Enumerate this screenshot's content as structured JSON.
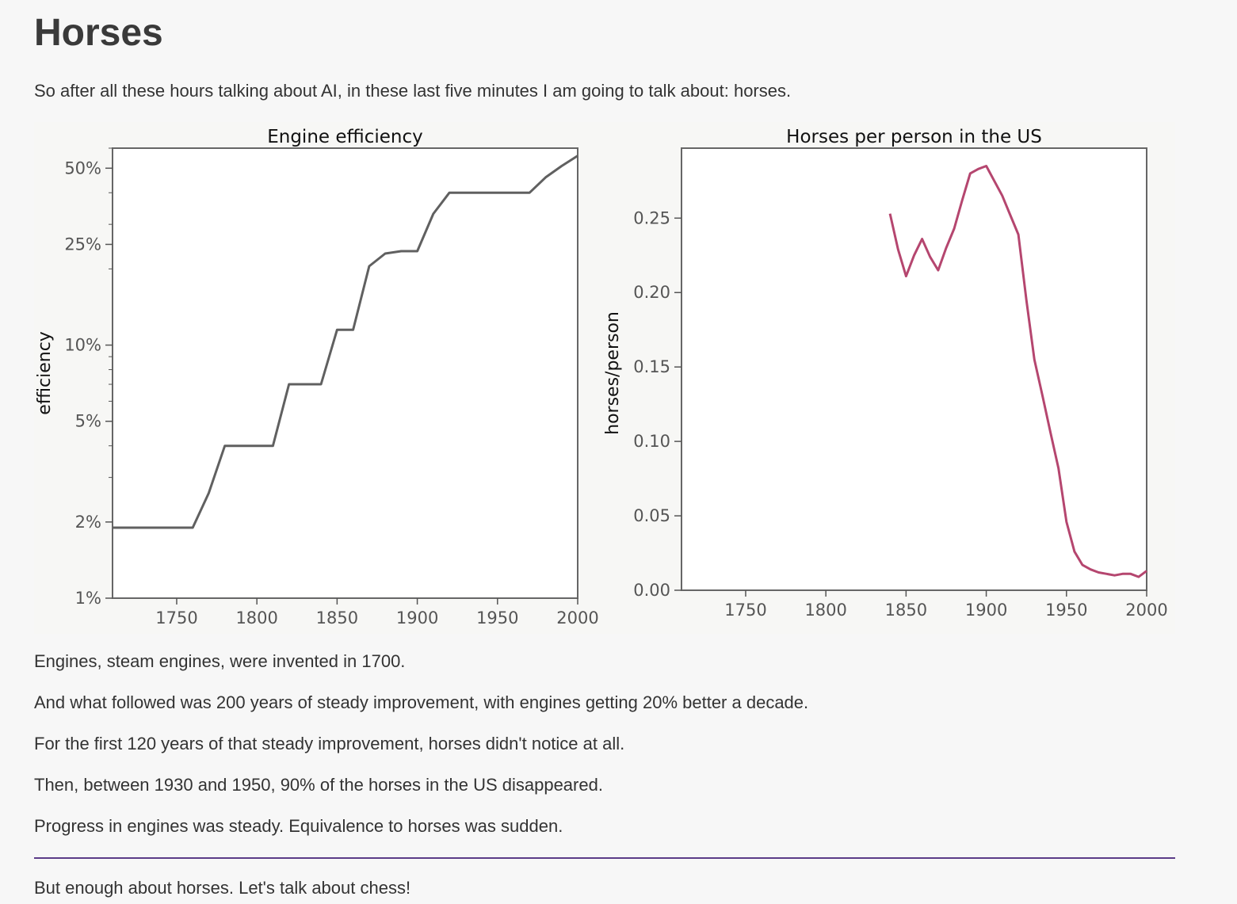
{
  "title": "Horses",
  "intro": "So after all these hours talking about AI, in these last five minutes I am going to talk about: horses.",
  "paragraphs": [
    "Engines, steam engines, were invented in 1700.",
    "And what followed was 200 years of steady improvement, with engines getting 20% better a decade.",
    "For the first 120 years of that steady improvement, horses didn't notice at all.",
    "Then, between 1930 and 1950, 90% of the horses in the US disappeared.",
    "Progress in engines was steady. Equivalence to horses was sudden."
  ],
  "closing": "But enough about horses. Let's talk about chess!",
  "colors": {
    "rule": "#5b3c88",
    "figure_bg": "#f7f7f5",
    "engine_line": "#606060",
    "horse_line": "#b5466f"
  },
  "chart_data": [
    {
      "type": "line",
      "title": "Engine efficiency",
      "xlabel": "",
      "ylabel": "efficiency",
      "yscale": "log",
      "xlim": [
        1710,
        2000
      ],
      "ylim": [
        1,
        60
      ],
      "xticks": [
        1750,
        1800,
        1850,
        1900,
        1950,
        2000
      ],
      "yticks": [
        1,
        2,
        5,
        10,
        25,
        50
      ],
      "ytick_labels": [
        "1%",
        "2%",
        "5%",
        "10%",
        "25%",
        "50%"
      ],
      "grid": false,
      "x": [
        1710,
        1760,
        1770,
        1780,
        1810,
        1820,
        1840,
        1850,
        1860,
        1870,
        1880,
        1890,
        1900,
        1910,
        1920,
        1970,
        1980,
        1990,
        2000
      ],
      "y": [
        1.9,
        1.9,
        2.6,
        4.0,
        4.0,
        7.0,
        7.0,
        11.5,
        11.5,
        20.5,
        23.0,
        23.5,
        23.5,
        33.0,
        40.0,
        40.0,
        46.0,
        51.0,
        56.0
      ]
    },
    {
      "type": "line",
      "title": "Horses per person in the US",
      "xlabel": "",
      "ylabel": "horses/person",
      "xlim": [
        1710,
        2000
      ],
      "ylim": [
        0,
        0.297
      ],
      "xticks": [
        1750,
        1800,
        1850,
        1900,
        1950,
        2000
      ],
      "yticks": [
        0.0,
        0.05,
        0.1,
        0.15,
        0.2,
        0.25
      ],
      "ytick_labels": [
        "0.00",
        "0.05",
        "0.10",
        "0.15",
        "0.20",
        "0.25"
      ],
      "grid": false,
      "x": [
        1840,
        1845,
        1850,
        1855,
        1860,
        1865,
        1870,
        1875,
        1880,
        1885,
        1890,
        1895,
        1900,
        1905,
        1910,
        1915,
        1920,
        1925,
        1930,
        1935,
        1940,
        1945,
        1950,
        1955,
        1960,
        1965,
        1970,
        1975,
        1980,
        1985,
        1990,
        1995,
        2000
      ],
      "y": [
        0.253,
        0.229,
        0.211,
        0.225,
        0.236,
        0.224,
        0.215,
        0.23,
        0.243,
        0.262,
        0.28,
        0.283,
        0.285,
        0.275,
        0.265,
        0.252,
        0.239,
        0.195,
        0.155,
        0.131,
        0.106,
        0.082,
        0.046,
        0.026,
        0.017,
        0.014,
        0.012,
        0.011,
        0.01,
        0.011,
        0.011,
        0.009,
        0.013
      ]
    }
  ]
}
